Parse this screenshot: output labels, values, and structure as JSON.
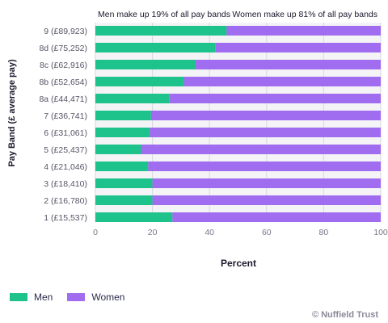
{
  "chart_data": {
    "type": "bar",
    "orientation": "horizontal",
    "stacked": true,
    "categories": [
      "9 (£89,923)",
      "8d (£75,252)",
      "8c (£62,916)",
      "8b (£52,654)",
      "8a (£44,471)",
      "7 (£36,741)",
      "6 (£31,061)",
      "5 (£25,437)",
      "4 (£21,046)",
      "3 (£18,410)",
      "2 (£16,780)",
      "1 (£15,537)"
    ],
    "series": [
      {
        "name": "Men",
        "color": "#1ec28b",
        "values": [
          46,
          42,
          35,
          31,
          26,
          19.5,
          19,
          16,
          18.5,
          20,
          20,
          27
        ]
      },
      {
        "name": "Women",
        "color": "#a06cf0",
        "values": [
          54,
          58,
          65,
          69,
          74,
          80.5,
          81,
          84,
          81.5,
          80,
          80,
          73
        ]
      }
    ],
    "xlabel": "Percent",
    "ylabel": "Pay Band (£ average pay)",
    "xlim": [
      0,
      100
    ],
    "xticks": [
      0,
      20,
      40,
      60,
      80,
      100
    ],
    "annotations": {
      "left": "Men make up 19% of all pay bands",
      "right": "Women make up 81% of all pay bands"
    },
    "legend_position": "bottom-left",
    "grid": true
  },
  "credit": "© Nuffield Trust"
}
